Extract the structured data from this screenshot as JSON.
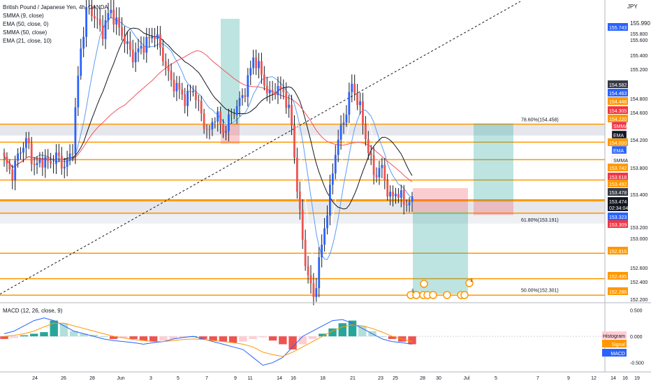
{
  "legend": {
    "symbol": "British Pound / Japanese Yen, 4h, OANDA",
    "ind1": "SMMA (9, close)",
    "ind2": "EMA (50, close, 0)",
    "ind3": "SMMA (50, close)",
    "ind4": "EMA (21, close, 10)"
  },
  "currency": "JPY",
  "top_price": "155.990",
  "time_axis": [
    "24",
    "26",
    "28",
    "Jun",
    "3",
    "5",
    "7",
    "9",
    "11",
    "14",
    "16",
    "18",
    "21",
    "23",
    "25",
    "28",
    "30",
    "Jul",
    "5",
    "7",
    "9",
    "12",
    "14",
    "16",
    "19"
  ],
  "price_axis": [
    "155.800",
    "155.600",
    "155.400",
    "155.200",
    "154.800",
    "154.600",
    "154.200",
    "153.800",
    "153.400",
    "153.200",
    "153.000",
    "152.600",
    "152.400",
    "152.200"
  ],
  "price_tags": [
    {
      "text": "155.743",
      "color": "#2962ff",
      "fg": "#ffffff"
    },
    {
      "text": "154.582",
      "color": "#363a45",
      "fg": "#ffffff"
    },
    {
      "text": "154.463",
      "color": "#2962ff",
      "fg": "#ffffff"
    },
    {
      "text": "154.448",
      "color": "#ff9800",
      "fg": "#ffffff"
    },
    {
      "text": "154.305",
      "color": "#f23645",
      "fg": "#ffffff"
    },
    {
      "text": "154.220",
      "color": "#ff9800",
      "fg": "#ffffff"
    },
    {
      "text": "154.000",
      "color": "#ff9800",
      "fg": "#ffffff"
    },
    {
      "text": "153.742",
      "color": "#ff9800",
      "fg": "#ffffff"
    },
    {
      "text": "153.618",
      "color": "#f23645",
      "fg": "#ffffff"
    },
    {
      "text": "153.492",
      "color": "#ff9800",
      "fg": "#ffffff"
    },
    {
      "text": "153.478",
      "color": "#363a45",
      "fg": "#ffffff"
    },
    {
      "text": "153.474",
      "color": "#131722",
      "fg": "#ffffff"
    },
    {
      "text": "02:34:04",
      "color": "#131722",
      "fg": "#ffffff"
    },
    {
      "text": "153.323",
      "color": "#2962ff",
      "fg": "#ffffff"
    },
    {
      "text": "153.309",
      "color": "#f23645",
      "fg": "#ffffff"
    },
    {
      "text": "152.816",
      "color": "#ff9800",
      "fg": "#ffffff"
    },
    {
      "text": "152.495",
      "color": "#ff9800",
      "fg": "#ffffff"
    },
    {
      "text": "152.286",
      "color": "#ff9800",
      "fg": "#ffffff"
    }
  ],
  "side_tags": [
    {
      "text": "SMMA",
      "color": "#f23645",
      "fg": "#ffffff"
    },
    {
      "text": "EMA",
      "color": "#131722",
      "fg": "#ffffff"
    },
    {
      "text": "EMA",
      "color": "#2962ff",
      "fg": "#ffffff"
    },
    {
      "text": "SMMA",
      "color": "#ffffff",
      "fg": "#131722"
    }
  ],
  "fib_labels": [
    "78.60%(154.458)",
    "61.80%(153.191)",
    "50.00%(152.301)"
  ],
  "macd_legend": "MACD (12, 26, close, 9)",
  "macd_axis": [
    "0.500",
    "0.000",
    "-0.500"
  ],
  "macd_tags": [
    {
      "text": "Histogram",
      "color": "#ffcdd2",
      "fg": "#131722"
    },
    {
      "text": "Signal",
      "color": "#ff9800",
      "fg": "#ffffff"
    },
    {
      "text": "MACD",
      "color": "#2962ff",
      "fg": "#ffffff"
    }
  ],
  "event_badges": [
    "5",
    "2"
  ],
  "chart_data": {
    "type": "candlestick",
    "symbol": "GBPJPY",
    "timeframe": "4h",
    "y_range": [
      152.2,
      156.0
    ],
    "last_price": 153.474,
    "horizontal_levels": [
      154.448,
      154.22,
      154.0,
      153.742,
      153.492,
      153.478,
      153.323,
      152.816,
      152.495,
      152.286
    ],
    "fibonacci": [
      {
        "label": "78.60%",
        "price": 154.458
      },
      {
        "label": "61.80%",
        "price": 153.191
      },
      {
        "label": "50.00%",
        "price": 152.301
      }
    ],
    "price_path": [
      154.0,
      153.8,
      154.1,
      154.25,
      153.9,
      154.0,
      153.95,
      154.05,
      153.9,
      154.1,
      155.3,
      155.95,
      155.8,
      155.6,
      155.9,
      155.7,
      155.5,
      155.3,
      155.4,
      155.5,
      155.6,
      155.3,
      155.0,
      154.9,
      154.75,
      154.9,
      154.6,
      154.3,
      154.6,
      154.35,
      154.55,
      154.7,
      154.9,
      155.3,
      155.1,
      154.8,
      154.9,
      154.85,
      154.5,
      153.4,
      152.6,
      152.25,
      152.9,
      153.5,
      154.2,
      154.5,
      154.95,
      154.7,
      154.2,
      153.8,
      153.9,
      153.5,
      153.6,
      153.45,
      153.474
    ],
    "macd": {
      "y_range": [
        -0.65,
        0.6
      ],
      "histogram": [
        -0.05,
        -0.03,
        0.02,
        0.05,
        0.08,
        0.3,
        0.25,
        0.1,
        0.05,
        0.03,
        0.0,
        -0.05,
        -0.03,
        -0.05,
        -0.08,
        -0.1,
        -0.08,
        -0.05,
        -0.03,
        0.0,
        -0.05,
        -0.08,
        -0.1,
        -0.12,
        -0.1,
        -0.05,
        -0.02,
        -0.08,
        -0.15,
        -0.25,
        -0.15,
        -0.05,
        0.05,
        0.15,
        0.25,
        0.3,
        0.2,
        0.1,
        0.0,
        -0.05,
        -0.1,
        -0.15
      ],
      "macd_line": [
        0.05,
        0.1,
        0.2,
        0.3,
        0.35,
        0.3,
        0.2,
        0.1,
        0.05,
        0.0,
        -0.05,
        -0.08,
        -0.1,
        -0.12,
        -0.15,
        -0.12,
        -0.1,
        -0.05,
        -0.02,
        0.0,
        -0.05,
        -0.1,
        -0.15,
        -0.2,
        -0.25,
        -0.4,
        -0.55,
        -0.5,
        -0.4,
        -0.2,
        0.0,
        0.1,
        0.2,
        0.3,
        0.32,
        0.25,
        0.15,
        0.05,
        -0.05,
        -0.1,
        -0.12,
        -0.15
      ],
      "signal_line": [
        0.0,
        0.02,
        0.05,
        0.1,
        0.18,
        0.25,
        0.25,
        0.2,
        0.15,
        0.1,
        0.05,
        0.0,
        -0.03,
        -0.06,
        -0.08,
        -0.1,
        -0.1,
        -0.08,
        -0.06,
        -0.05,
        -0.06,
        -0.08,
        -0.1,
        -0.12,
        -0.15,
        -0.2,
        -0.3,
        -0.35,
        -0.38,
        -0.3,
        -0.2,
        -0.1,
        0.0,
        0.1,
        0.18,
        0.22,
        0.2,
        0.15,
        0.08,
        0.0,
        -0.05,
        -0.1
      ]
    }
  }
}
